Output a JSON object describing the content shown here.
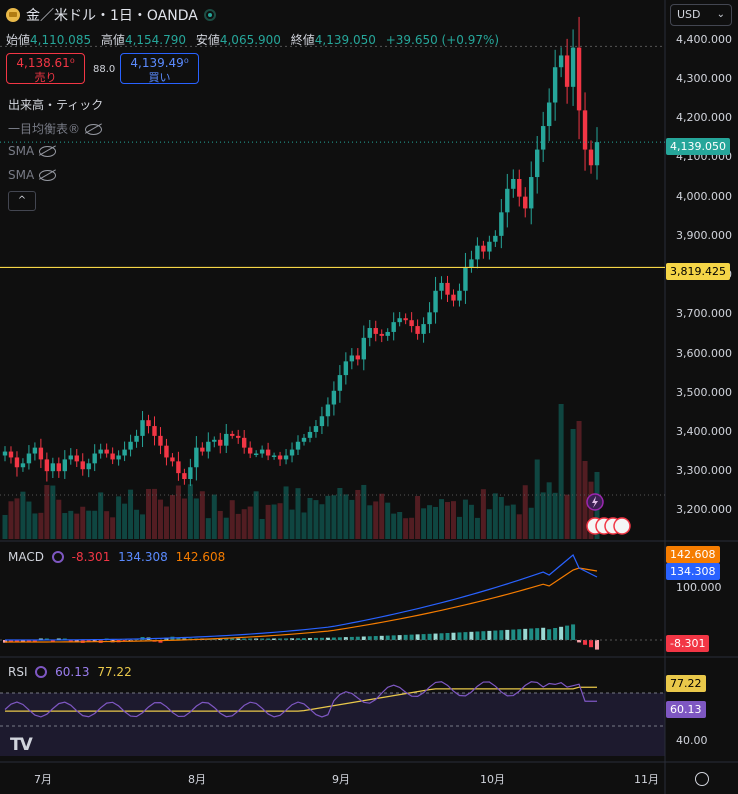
{
  "header": {
    "title": "金／米ドル・1日・OANDA",
    "open_label": "始値",
    "open": "4,110.085",
    "high_label": "高値",
    "high": "4,154.790",
    "low_label": "安値",
    "low": "4,065.900",
    "close_label": "終値",
    "close": "4,139.050",
    "change": "+39.650 (+0.97%)"
  },
  "trade": {
    "sell_price": "4,138.61⁰",
    "sell_label": "売り",
    "spread": "88.0",
    "buy_price": "4,139.49⁰",
    "buy_label": "買い"
  },
  "indicators": {
    "volume": "出来高・ティック",
    "ichimoku": "一目均衡表",
    "ichimoku_mark": "®",
    "sma1": "SMA",
    "sma2": "SMA",
    "collapse": "^"
  },
  "currency": {
    "label": "USD",
    "chevron": "⌄"
  },
  "price_axis": {
    "ticks": [
      "4,400.000",
      "4,300.000",
      "4,200.000",
      "4,100.000",
      "4,000.000",
      "3,900.000",
      "3,800.000",
      "3,700.000",
      "3,600.000",
      "3,500.000",
      "3,400.000",
      "3,300.000",
      "3,200.000"
    ],
    "current_tag": "4,139.050",
    "hline_tag": "3,819.425"
  },
  "macd": {
    "label": "MACD",
    "hist": "-8.301",
    "macd": "134.308",
    "signal": "142.608",
    "axis_tick": "100.000",
    "tag_signal": "142.608",
    "tag_macd": "134.308",
    "tag_hist": "-8.301"
  },
  "rsi": {
    "label": "RSI",
    "value": "60.13",
    "ma": "77.22",
    "axis_tick": "40.00",
    "tag_ma": "77.22",
    "tag_value": "60.13"
  },
  "x_axis": {
    "labels": [
      "7月",
      "8月",
      "9月",
      "10月",
      "11月"
    ]
  },
  "logo": "TV",
  "colors": {
    "up": "#26a69a",
    "down": "#f23645",
    "macd": "#2962ff",
    "signal": "#f57c00",
    "rsi": "#7e57c2",
    "rsi_ma": "#e9c84a",
    "hline": "#f5d547"
  },
  "chart_data": [
    {
      "type": "candlestick",
      "title": "金／米ドル・1日・OANDA",
      "ylim": [
        3150,
        4430
      ],
      "x_labels": [
        "7月",
        "8月",
        "9月",
        "10月",
        "11月"
      ],
      "close": [
        3350,
        3335,
        3310,
        3320,
        3345,
        3360,
        3330,
        3300,
        3320,
        3300,
        3330,
        3340,
        3325,
        3305,
        3320,
        3345,
        3355,
        3345,
        3330,
        3340,
        3355,
        3375,
        3390,
        3430,
        3415,
        3390,
        3365,
        3335,
        3325,
        3295,
        3280,
        3310,
        3360,
        3350,
        3375,
        3380,
        3365,
        3395,
        3390,
        3385,
        3360,
        3345,
        3345,
        3355,
        3340,
        3340,
        3330,
        3340,
        3355,
        3375,
        3385,
        3400,
        3415,
        3440,
        3470,
        3505,
        3545,
        3580,
        3595,
        3585,
        3640,
        3665,
        3650,
        3645,
        3655,
        3680,
        3690,
        3685,
        3670,
        3650,
        3675,
        3705,
        3760,
        3780,
        3750,
        3735,
        3760,
        3820,
        3840,
        3875,
        3860,
        3885,
        3900,
        3960,
        4020,
        4045,
        4000,
        3970,
        4050,
        4120,
        4180,
        4240,
        4330,
        4360,
        4280,
        4380,
        4220,
        4120,
        4080,
        4139
      ],
      "current": 4139.05,
      "hline": 3819.425
    },
    {
      "type": "bar",
      "title": "出来高・ティック",
      "note": "volume bars"
    },
    {
      "type": "line",
      "title": "MACD",
      "series": [
        {
          "name": "MACD",
          "last": 134.308
        },
        {
          "name": "Signal",
          "last": 142.608
        },
        {
          "name": "Histogram",
          "last": -8.301
        }
      ],
      "y_tick": 100
    },
    {
      "type": "line",
      "title": "RSI",
      "series": [
        {
          "name": "RSI",
          "last": 60.13
        },
        {
          "name": "RSI MA",
          "last": 77.22
        }
      ],
      "y_tick": 40
    }
  ]
}
